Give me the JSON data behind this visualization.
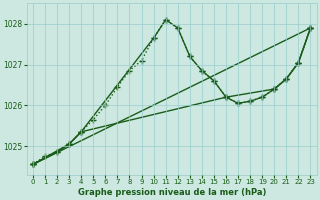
{
  "title": "Graphe pression niveau de la mer (hPa)",
  "bg_color": "#cce8e0",
  "grid_color": "#99cccc",
  "line_color": "#1a5c1a",
  "xlim": [
    -0.5,
    23.5
  ],
  "ylim": [
    1024.3,
    1028.5
  ],
  "yticks": [
    1025,
    1026,
    1027,
    1028
  ],
  "xticks": [
    0,
    1,
    2,
    3,
    4,
    5,
    6,
    7,
    8,
    9,
    10,
    11,
    12,
    13,
    14,
    15,
    16,
    17,
    18,
    19,
    20,
    21,
    22,
    23
  ],
  "series": [
    {
      "x": [
        0,
        1,
        2,
        3,
        4,
        5,
        6,
        7,
        8,
        9,
        10,
        11,
        12,
        13,
        14,
        15,
        16,
        17,
        18,
        19,
        20,
        21,
        22,
        23
      ],
      "y": [
        1024.55,
        1024.75,
        1024.85,
        1025.05,
        1025.35,
        1025.65,
        1026.0,
        1026.45,
        1026.85,
        1027.1,
        1027.65,
        1028.1,
        1027.9,
        1027.2,
        1026.85,
        1026.6,
        1026.2,
        1026.05,
        1026.1,
        1026.2,
        1026.4,
        1026.65,
        1027.05,
        1027.9
      ],
      "linestyle": "dotted",
      "linewidth": 1.0,
      "marker": "+",
      "markersize": 4
    },
    {
      "x": [
        0,
        2,
        3,
        4,
        10,
        11,
        12,
        13,
        14,
        15,
        16,
        20,
        21,
        22,
        23
      ],
      "y": [
        1024.55,
        1024.85,
        1025.05,
        1025.35,
        1027.65,
        1028.1,
        1027.9,
        1027.2,
        1026.85,
        1026.6,
        1026.2,
        1026.4,
        1026.65,
        1027.05,
        1027.9
      ],
      "linestyle": "solid",
      "linewidth": 1.0,
      "marker": "+",
      "markersize": 4
    },
    {
      "x": [
        0,
        3,
        4,
        16,
        17,
        18,
        19,
        20,
        21,
        22,
        23
      ],
      "y": [
        1024.55,
        1025.05,
        1025.35,
        1026.2,
        1026.05,
        1026.1,
        1026.2,
        1026.4,
        1026.65,
        1027.05,
        1027.9
      ],
      "linestyle": "solid",
      "linewidth": 1.0,
      "marker": "+",
      "markersize": 4
    },
    {
      "x": [
        0,
        23
      ],
      "y": [
        1024.55,
        1027.9
      ],
      "linestyle": "solid",
      "linewidth": 1.0,
      "marker": "+",
      "markersize": 4
    }
  ]
}
